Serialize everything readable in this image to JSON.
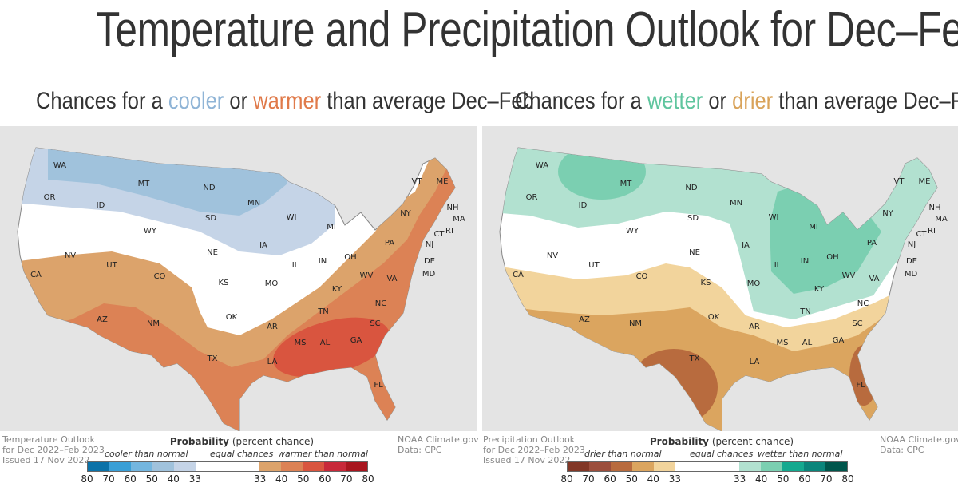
{
  "title": "Temperature and Precipitation Outlook for Dec–Feb",
  "temperature": {
    "subtitle": {
      "pre": "Chances for a ",
      "a": "cooler",
      "mid": " or ",
      "b": "warmer",
      "post": " than average Dec–Feb"
    },
    "colors": {
      "a": "#8fb4d6",
      "b": "#e07a4a"
    },
    "note": [
      "Temperature Outlook",
      "for Dec 2022–Feb 2023",
      "Issued 17 Nov 2022"
    ],
    "credit": [
      "NOAA Climate.gov",
      "Data: CPC"
    ],
    "legend": {
      "title_bold": "Probability",
      "title_rest": " (percent chance)",
      "left": "cooler than normal",
      "center": "equal chances",
      "right": "warmer than normal",
      "colors": [
        "#0b72a8",
        "#3a9fd6",
        "#74b6df",
        "#a0c2dc",
        "#c5d4e7",
        "#ffffff",
        "#dca36b",
        "#dc8255",
        "#d9553f",
        "#c8293a",
        "#a8161f"
      ],
      "ticks": [
        "80",
        "70",
        "60",
        "50",
        "40",
        "33",
        "33",
        "40",
        "50",
        "60",
        "70",
        "80"
      ]
    },
    "states": [
      "WA",
      "OR",
      "CA",
      "ID",
      "NV",
      "MT",
      "WY",
      "UT",
      "AZ",
      "CO",
      "NM",
      "ND",
      "SD",
      "NE",
      "KS",
      "OK",
      "TX",
      "MN",
      "IA",
      "MO",
      "AR",
      "LA",
      "WI",
      "IL",
      "MS",
      "MI",
      "IN",
      "KY",
      "TN",
      "AL",
      "OH",
      "GA",
      "FL",
      "SC",
      "NC",
      "VA",
      "WV",
      "PA",
      "NY",
      "VT",
      "ME",
      "NH",
      "MA",
      "CT",
      "RI",
      "NJ",
      "DE",
      "MD"
    ]
  },
  "precipitation": {
    "subtitle": {
      "pre": "Chances for a ",
      "a": "wetter",
      "mid": " or ",
      "b": "drier",
      "post": " than average Dec–Feb"
    },
    "colors": {
      "a": "#5fc59e",
      "b": "#d9a35a"
    },
    "note": [
      "Precipitation Outlook",
      "for Dec 2022–Feb 2023",
      "Issued 17 Nov 2022"
    ],
    "credit": [
      "NOAA Climate.gov",
      "Data: CPC"
    ],
    "legend": {
      "title_bold": "Probability",
      "title_rest": " (percent chance)",
      "left": "drier than normal",
      "center": "equal chances",
      "right": "wetter than normal",
      "colors": [
        "#823726",
        "#9c4e3c",
        "#b86b3e",
        "#dba55f",
        "#f2d49c",
        "#ffffff",
        "#b2e1d0",
        "#7bcfb1",
        "#14a98f",
        "#0a857b",
        "#00564c"
      ],
      "ticks": [
        "80",
        "70",
        "60",
        "50",
        "40",
        "33",
        "33",
        "40",
        "50",
        "60",
        "70",
        "80"
      ]
    },
    "states": [
      "WA",
      "OR",
      "CA",
      "ID",
      "NV",
      "MT",
      "WY",
      "UT",
      "AZ",
      "CO",
      "NM",
      "ND",
      "SD",
      "NE",
      "KS",
      "OK",
      "TX",
      "MN",
      "IA",
      "MO",
      "AR",
      "LA",
      "WI",
      "IL",
      "MS",
      "MI",
      "IN",
      "KY",
      "TN",
      "AL",
      "OH",
      "GA",
      "FL",
      "SC",
      "NC",
      "VA",
      "WV",
      "PA",
      "NY",
      "VT",
      "ME",
      "NH",
      "MA",
      "CT",
      "RI",
      "NJ",
      "DE",
      "MD"
    ]
  }
}
